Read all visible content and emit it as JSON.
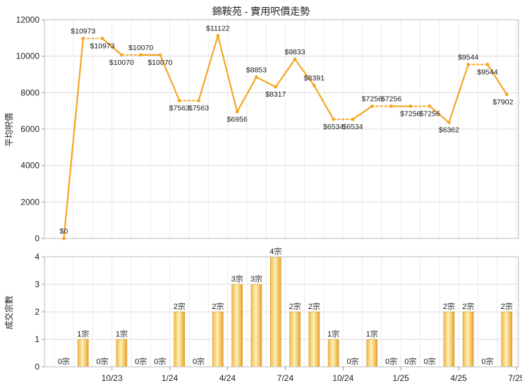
{
  "chart_data": [
    {
      "type": "line",
      "title": "錦鞍苑 - 實用呎價走勢",
      "ylabel": "平均呎價",
      "ylim": [
        0,
        12000
      ],
      "yticks": [
        0,
        2000,
        4000,
        6000,
        8000,
        10000,
        12000
      ],
      "grid": true,
      "line_color": "#f5a623",
      "series": [
        {
          "values": [
            0,
            10973,
            10973,
            10070,
            10070,
            10070,
            7563,
            7563,
            11122,
            6956,
            8853,
            8317,
            9833,
            8391,
            6534,
            6534,
            7256,
            7256,
            7256,
            7256,
            6362,
            9544,
            9544,
            7902
          ],
          "labels": [
            "$0",
            "$10973",
            "$10973",
            "$10070",
            "$10070",
            "$10070",
            "$7563",
            "$7563",
            "$11122",
            "$6956",
            "$8853",
            "$8317",
            "$9833",
            "$8391",
            "$6534",
            "$6534",
            "$7256",
            "$7256",
            "$7256",
            "$7256",
            "$6362",
            "$9544",
            "$9544",
            "$7902"
          ],
          "carried_forward": [
            false,
            false,
            true,
            false,
            true,
            false,
            false,
            true,
            false,
            false,
            false,
            false,
            false,
            false,
            false,
            true,
            false,
            true,
            false,
            true,
            false,
            false,
            true,
            false
          ]
        }
      ]
    },
    {
      "type": "bar",
      "ylabel": "成交宗數",
      "ylim": [
        0,
        4
      ],
      "yticks": [
        0,
        1,
        2,
        3,
        4
      ],
      "grid": true,
      "bar_color": "#f5a623",
      "x_ticks": [
        "10/23",
        "1/24",
        "4/24",
        "7/24",
        "10/24",
        "1/25",
        "4/25",
        "7/25"
      ],
      "values": [
        0,
        1,
        0,
        1,
        0,
        0,
        2,
        0,
        2,
        3,
        3,
        4,
        2,
        2,
        1,
        0,
        1,
        0,
        0,
        0,
        2,
        2,
        0,
        2
      ],
      "labels": [
        "0宗",
        "1宗",
        "0宗",
        "1宗",
        "0宗",
        "0宗",
        "2宗",
        "0宗",
        "2宗",
        "3宗",
        "3宗",
        "4宗",
        "2宗",
        "2宗",
        "1宗",
        "0宗",
        "1宗",
        "0宗",
        "0宗",
        "0宗",
        "2宗",
        "2宗",
        "0宗",
        "2宗"
      ]
    }
  ]
}
